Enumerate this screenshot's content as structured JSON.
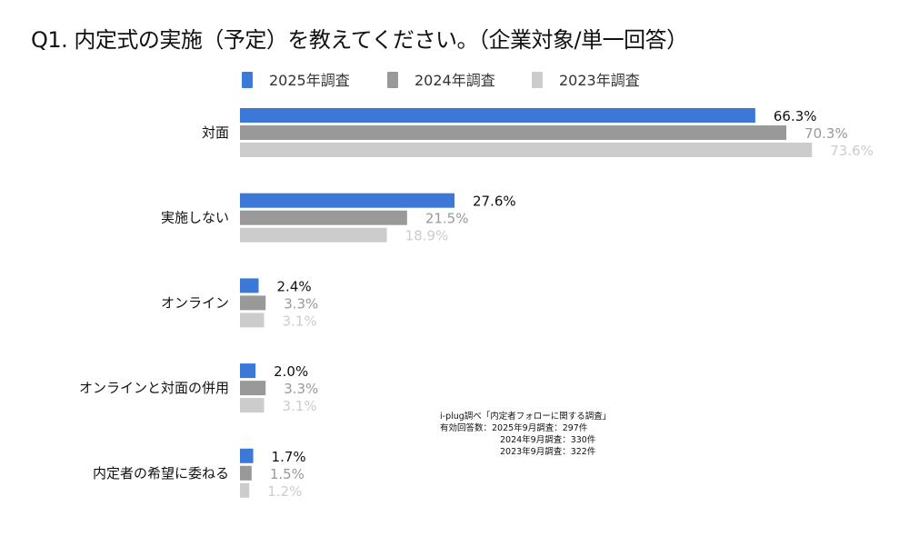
{
  "chart_data": {
    "type": "bar",
    "orientation": "horizontal",
    "title": "Q1. 内定式の実施（予定）を教えてください。（企業対象/単一回答）",
    "categories": [
      "対面",
      "実施しない",
      "オンライン",
      "オンラインと対面の併用",
      "内定者の希望に委ねる"
    ],
    "series": [
      {
        "name": "2025年調査",
        "color": "#3c78d8",
        "label_color": "#111111",
        "values": [
          66.3,
          27.6,
          2.4,
          2.0,
          1.7
        ]
      },
      {
        "name": "2024年調査",
        "color": "#999999",
        "label_color": "#999999",
        "values": [
          70.3,
          21.5,
          3.3,
          3.3,
          1.5
        ]
      },
      {
        "name": "2023年調査",
        "color": "#cccccc",
        "label_color": "#cccccc",
        "values": [
          73.6,
          18.9,
          3.1,
          3.1,
          1.2
        ]
      }
    ],
    "value_suffix": "%",
    "xlim": [
      0,
      100
    ],
    "grid": false,
    "legend": "top"
  },
  "note": {
    "line1": "i-plug調べ「内定者フォローに関する調査」",
    "line2": "有効回答数：2025年9月調査：297件",
    "line3": "2024年9月調査：330件",
    "line4": "2023年9月調査：322件"
  }
}
